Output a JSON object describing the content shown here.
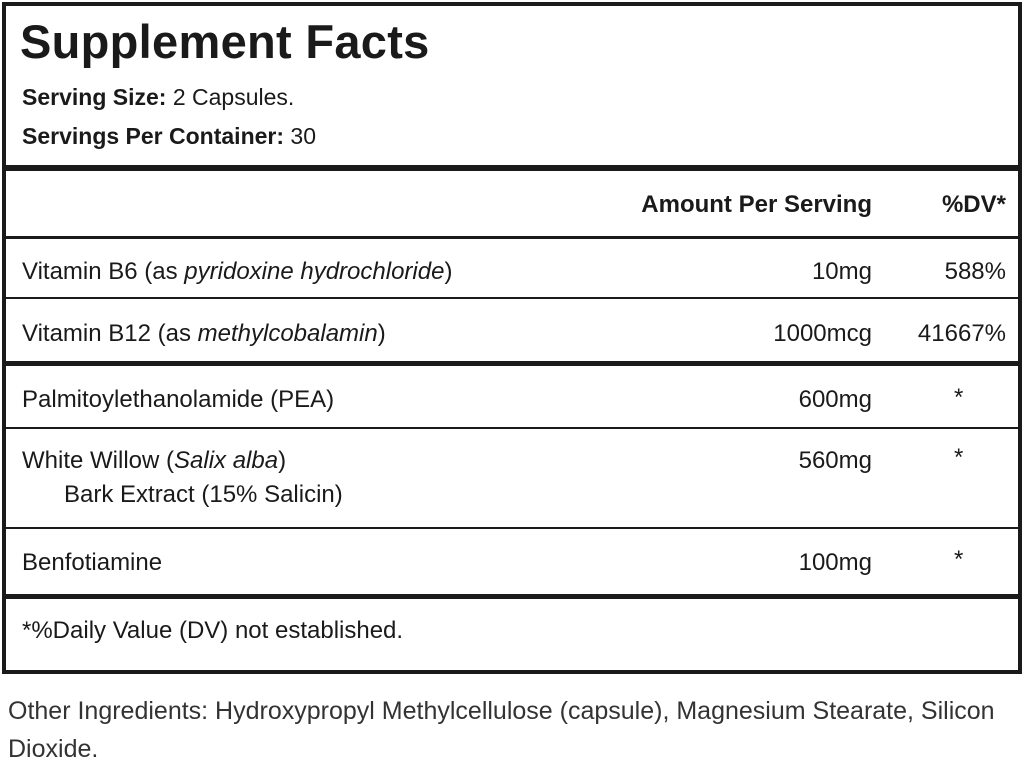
{
  "title": "Supplement Facts",
  "serving_size": {
    "label": "Serving Size:",
    "value": "2 Capsules."
  },
  "servings_per_container": {
    "label": "Servings Per Container:",
    "value": "30"
  },
  "header": {
    "amount": "Amount Per Serving",
    "dv": "%DV*"
  },
  "rows": [
    {
      "name": "Vitamin B6 (as ",
      "italic": "pyridoxine hydrochloride",
      "after": ")",
      "amount": "10mg",
      "dv": "588%"
    },
    {
      "name": "Vitamin B12 (as ",
      "italic": "methylcobalamin",
      "after": ")",
      "amount": "1000mcg",
      "dv": "41667%"
    },
    {
      "name": "Palmitoylethanolamide (PEA)",
      "amount": "600mg",
      "dv": "*"
    },
    {
      "name": "White Willow (",
      "italic": "Salix alba",
      "after": ")",
      "line2": "Bark Extract (15% Salicin)",
      "amount": "560mg",
      "dv": "*"
    },
    {
      "name": "Benfotiamine",
      "amount": "100mg",
      "dv": "*"
    }
  ],
  "footnote": "*%Daily Value (DV) not established.",
  "other_ingredients": "Other Ingredients: Hydroxypropyl Methylcellulose (capsule), Magnesium Stearate, Silicon Dioxide."
}
